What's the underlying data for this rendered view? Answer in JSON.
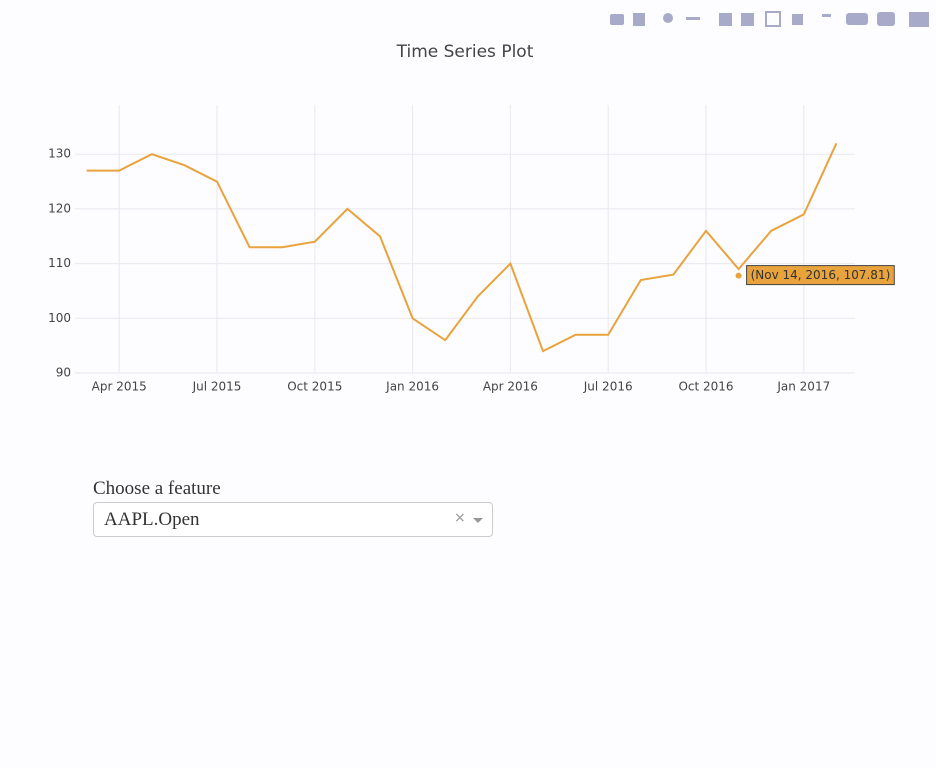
{
  "chart_data": {
    "type": "line",
    "title": "Time Series Plot",
    "x": [
      "2015-03",
      "2015-04",
      "2015-05",
      "2015-06",
      "2015-07",
      "2015-08",
      "2015-09",
      "2015-10",
      "2015-11",
      "2015-12",
      "2016-01",
      "2016-02",
      "2016-03",
      "2016-04",
      "2016-05",
      "2016-06",
      "2016-07",
      "2016-08",
      "2016-09",
      "2016-10",
      "2016-11",
      "2016-12",
      "2017-01",
      "2017-02"
    ],
    "series": [
      {
        "name": "AAPL.Open",
        "color": "#e8a33c",
        "values": [
          127,
          127,
          130,
          128,
          125,
          113,
          113,
          114,
          120,
          115,
          100,
          96,
          104,
          110,
          94,
          97,
          97,
          107,
          108,
          116,
          109,
          116,
          119,
          132
        ]
      }
    ],
    "xlim": [
      "2015-02",
      "2017-03"
    ],
    "xticks": [
      {
        "value": "2015-04",
        "label": "Apr 2015"
      },
      {
        "value": "2015-07",
        "label": "Jul 2015"
      },
      {
        "value": "2015-10",
        "label": "Oct 2015"
      },
      {
        "value": "2016-01",
        "label": "Jan 2016"
      },
      {
        "value": "2016-04",
        "label": "Apr 2016"
      },
      {
        "value": "2016-07",
        "label": "Jul 2016"
      },
      {
        "value": "2016-10",
        "label": "Oct 2016"
      },
      {
        "value": "2017-01",
        "label": "Jan 2017"
      }
    ],
    "ylim": [
      90,
      139
    ],
    "yticks": [
      90,
      100,
      110,
      120,
      130
    ],
    "grid": true,
    "hover": {
      "x": "2016-11",
      "y": 107.81,
      "label": "(Nov 14, 2016, 107.81)"
    }
  },
  "dropdown": {
    "label": "Choose a feature",
    "value": "AAPL.Open"
  }
}
